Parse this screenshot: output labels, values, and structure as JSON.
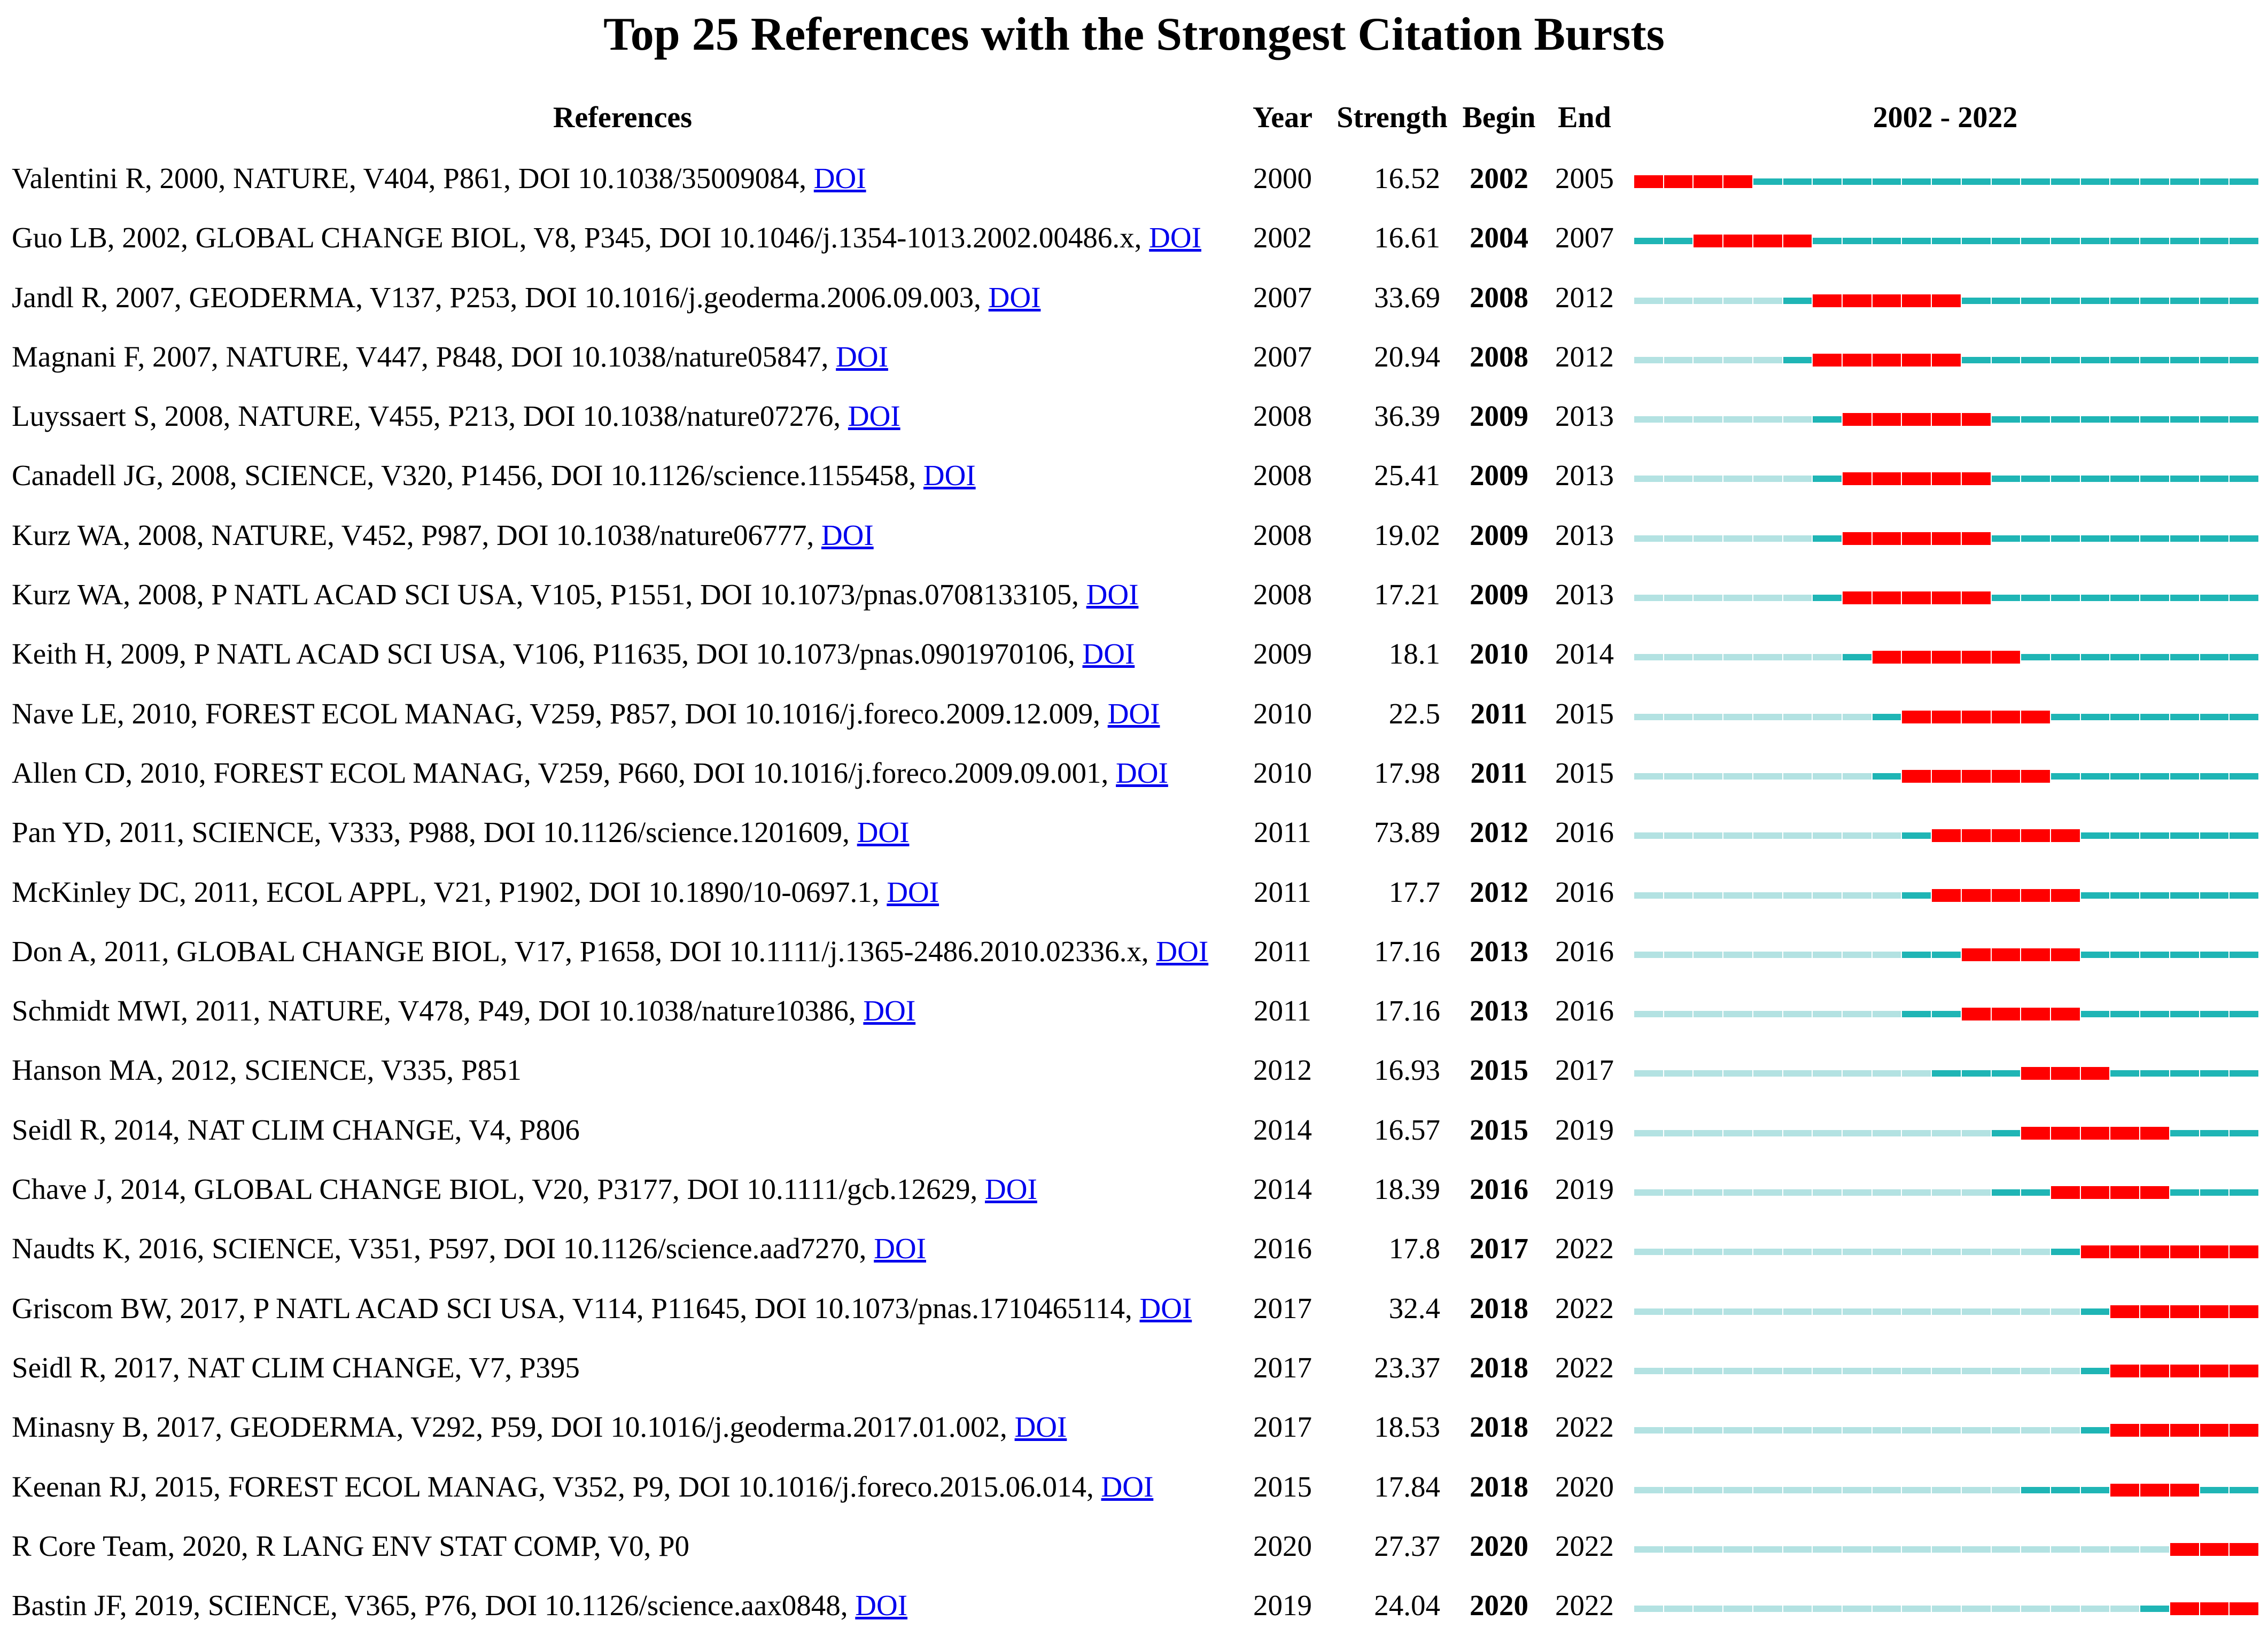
{
  "chart_data": {
    "type": "table",
    "title": "Top 25 References with the Strongest Citation Bursts",
    "columns": [
      "References",
      "Year",
      "Strength",
      "Begin",
      "End",
      "2002 - 2022"
    ],
    "range": [
      2002,
      2022
    ],
    "colors": {
      "burst": "#ff0000",
      "active": "#1fb5b5",
      "inactive": "#b3e2e2"
    },
    "rows": [
      {
        "ref": "Valentini R, 2000, NATURE, V404, P861, DOI 10.1038/35009084,",
        "doi": "DOI",
        "year": 2000,
        "strength": "16.52",
        "begin": 2002,
        "end": 2005
      },
      {
        "ref": "Guo LB, 2002, GLOBAL CHANGE BIOL, V8, P345, DOI 10.1046/j.1354-1013.2002.00486.x,",
        "doi": "DOI",
        "year": 2002,
        "strength": "16.61",
        "begin": 2004,
        "end": 2007
      },
      {
        "ref": "Jandl R, 2007, GEODERMA, V137, P253, DOI 10.1016/j.geoderma.2006.09.003,",
        "doi": "DOI",
        "year": 2007,
        "strength": "33.69",
        "begin": 2008,
        "end": 2012
      },
      {
        "ref": "Magnani F, 2007, NATURE, V447, P848, DOI 10.1038/nature05847,",
        "doi": "DOI",
        "year": 2007,
        "strength": "20.94",
        "begin": 2008,
        "end": 2012
      },
      {
        "ref": "Luyssaert S, 2008, NATURE, V455, P213, DOI 10.1038/nature07276,",
        "doi": "DOI",
        "year": 2008,
        "strength": "36.39",
        "begin": 2009,
        "end": 2013
      },
      {
        "ref": "Canadell JG, 2008, SCIENCE, V320, P1456, DOI 10.1126/science.1155458,",
        "doi": "DOI",
        "year": 2008,
        "strength": "25.41",
        "begin": 2009,
        "end": 2013
      },
      {
        "ref": "Kurz WA, 2008, NATURE, V452, P987, DOI 10.1038/nature06777,",
        "doi": "DOI",
        "year": 2008,
        "strength": "19.02",
        "begin": 2009,
        "end": 2013
      },
      {
        "ref": "Kurz WA, 2008, P NATL ACAD SCI USA, V105, P1551, DOI 10.1073/pnas.0708133105,",
        "doi": "DOI",
        "year": 2008,
        "strength": "17.21",
        "begin": 2009,
        "end": 2013
      },
      {
        "ref": "Keith H, 2009, P NATL ACAD SCI USA, V106, P11635, DOI 10.1073/pnas.0901970106,",
        "doi": "DOI",
        "year": 2009,
        "strength": "18.1",
        "begin": 2010,
        "end": 2014
      },
      {
        "ref": "Nave LE, 2010, FOREST ECOL MANAG, V259, P857, DOI 10.1016/j.foreco.2009.12.009,",
        "doi": "DOI",
        "year": 2010,
        "strength": "22.5",
        "begin": 2011,
        "end": 2015
      },
      {
        "ref": "Allen CD, 2010, FOREST ECOL MANAG, V259, P660, DOI 10.1016/j.foreco.2009.09.001,",
        "doi": "DOI",
        "year": 2010,
        "strength": "17.98",
        "begin": 2011,
        "end": 2015
      },
      {
        "ref": "Pan YD, 2011, SCIENCE, V333, P988, DOI 10.1126/science.1201609,",
        "doi": "DOI",
        "year": 2011,
        "strength": "73.89",
        "begin": 2012,
        "end": 2016
      },
      {
        "ref": "McKinley DC, 2011, ECOL APPL, V21, P1902, DOI 10.1890/10-0697.1,",
        "doi": "DOI",
        "year": 2011,
        "strength": "17.7",
        "begin": 2012,
        "end": 2016
      },
      {
        "ref": "Don A, 2011, GLOBAL CHANGE BIOL, V17, P1658, DOI 10.1111/j.1365-2486.2010.02336.x,",
        "doi": "DOI",
        "year": 2011,
        "strength": "17.16",
        "begin": 2013,
        "end": 2016
      },
      {
        "ref": "Schmidt MWI, 2011, NATURE, V478, P49, DOI 10.1038/nature10386,",
        "doi": "DOI",
        "year": 2011,
        "strength": "17.16",
        "begin": 2013,
        "end": 2016
      },
      {
        "ref": "Hanson MA, 2012, SCIENCE, V335, P851",
        "doi": "",
        "year": 2012,
        "strength": "16.93",
        "begin": 2015,
        "end": 2017
      },
      {
        "ref": "Seidl R, 2014, NAT CLIM CHANGE, V4, P806",
        "doi": "",
        "year": 2014,
        "strength": "16.57",
        "begin": 2015,
        "end": 2019
      },
      {
        "ref": "Chave J, 2014, GLOBAL CHANGE BIOL, V20, P3177, DOI 10.1111/gcb.12629,",
        "doi": "DOI",
        "year": 2014,
        "strength": "18.39",
        "begin": 2016,
        "end": 2019
      },
      {
        "ref": "Naudts K, 2016, SCIENCE, V351, P597, DOI 10.1126/science.aad7270,",
        "doi": "DOI",
        "year": 2016,
        "strength": "17.8",
        "begin": 2017,
        "end": 2022
      },
      {
        "ref": "Griscom BW, 2017, P NATL ACAD SCI USA, V114, P11645, DOI 10.1073/pnas.1710465114,",
        "doi": "DOI",
        "year": 2017,
        "strength": "32.4",
        "begin": 2018,
        "end": 2022
      },
      {
        "ref": "Seidl R, 2017, NAT CLIM CHANGE, V7, P395",
        "doi": "",
        "year": 2017,
        "strength": "23.37",
        "begin": 2018,
        "end": 2022
      },
      {
        "ref": "Minasny B, 2017, GEODERMA, V292, P59, DOI 10.1016/j.geoderma.2017.01.002,",
        "doi": "DOI",
        "year": 2017,
        "strength": "18.53",
        "begin": 2018,
        "end": 2022
      },
      {
        "ref": "Keenan RJ, 2015, FOREST ECOL MANAG, V352, P9, DOI 10.1016/j.foreco.2015.06.014,",
        "doi": "DOI",
        "year": 2015,
        "strength": "17.84",
        "begin": 2018,
        "end": 2020
      },
      {
        "ref": "R Core Team, 2020, R LANG ENV STAT COMP, V0, P0",
        "doi": "",
        "year": 2020,
        "strength": "27.37",
        "begin": 2020,
        "end": 2022
      },
      {
        "ref": "Bastin JF, 2019, SCIENCE, V365, P76, DOI 10.1126/science.aax0848,",
        "doi": "DOI",
        "year": 2019,
        "strength": "24.04",
        "begin": 2020,
        "end": 2022
      }
    ]
  }
}
